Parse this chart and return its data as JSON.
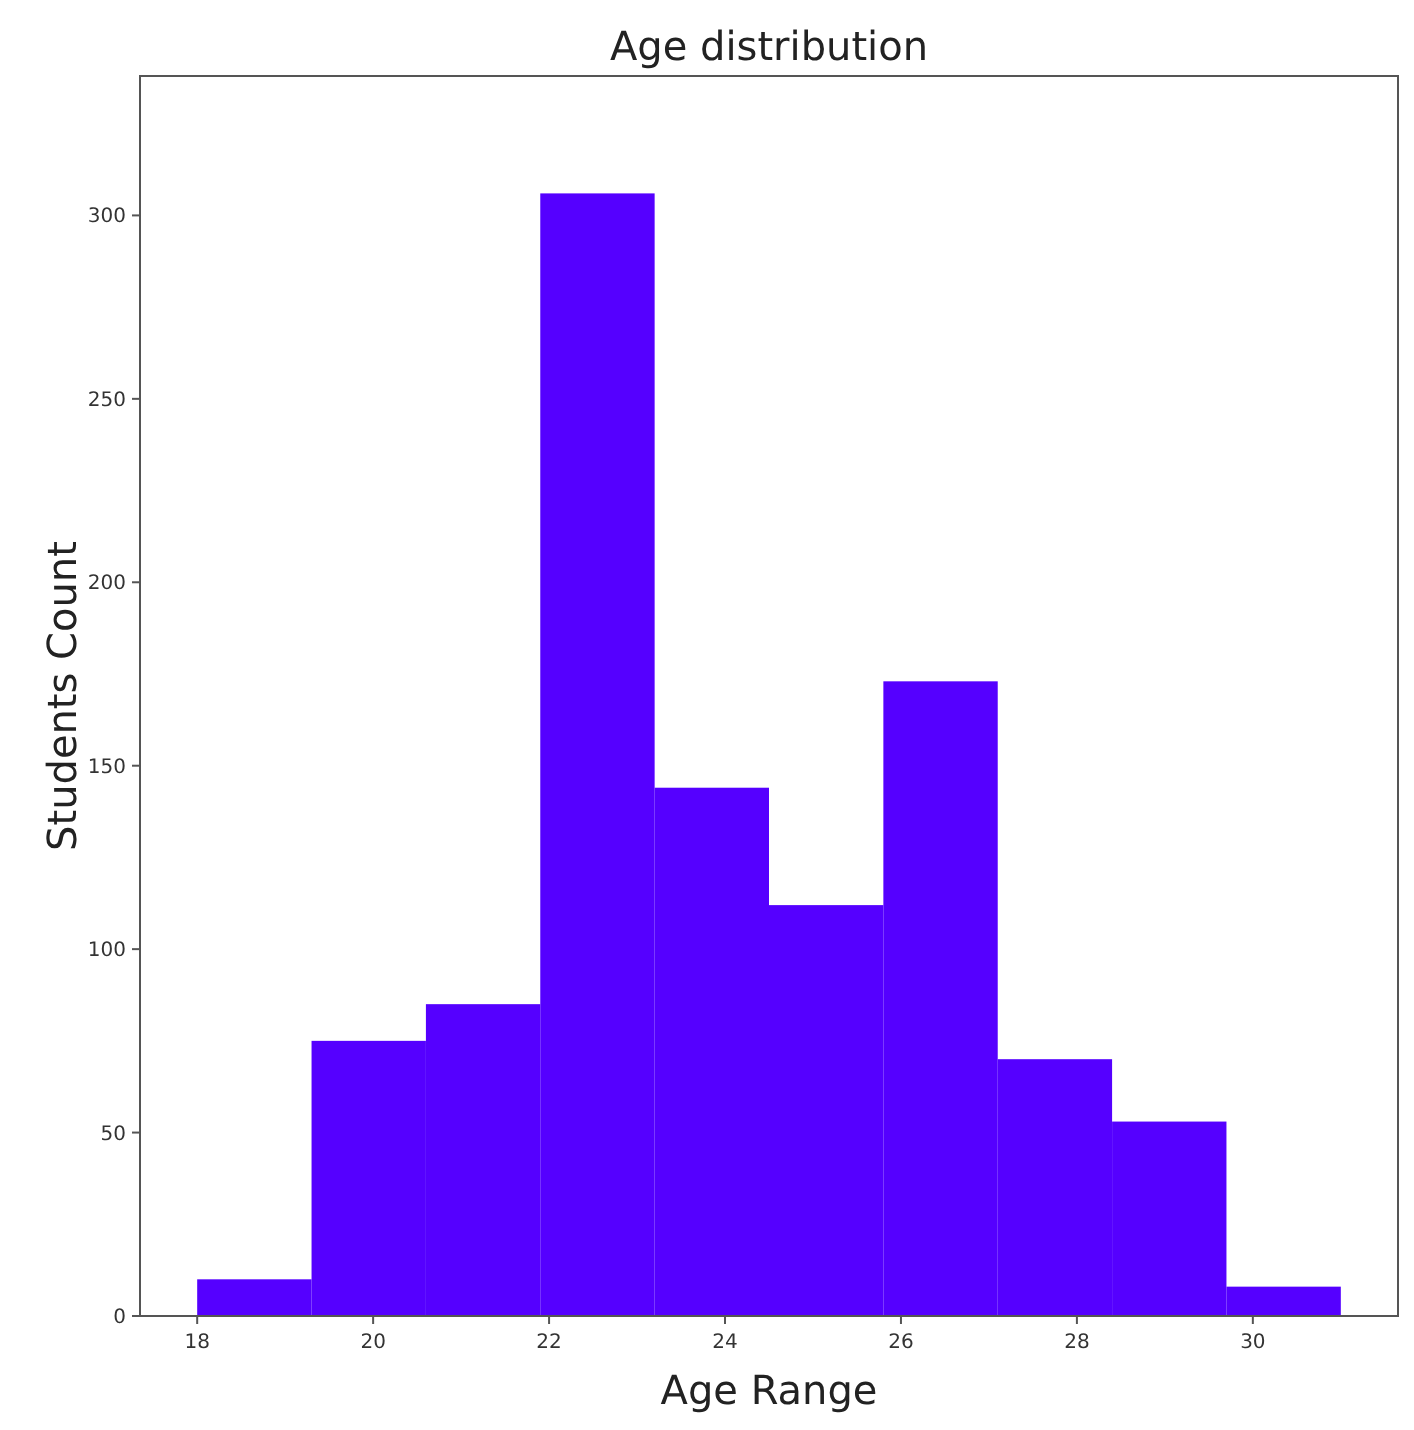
{
  "chart_data": {
    "type": "histogram",
    "title": "Age distribution",
    "xlabel": "Age Range",
    "ylabel": "Students Count",
    "bins": [
      18,
      19.3,
      20.6,
      21.9,
      23.2,
      24.5,
      25.8,
      27.1,
      28.4,
      29.7,
      31
    ],
    "values": [
      10,
      75,
      85,
      306,
      144,
      112,
      173,
      70,
      53,
      8
    ],
    "color": "#5500ff",
    "xlim": [
      17.35,
      31.65
    ],
    "xticks": [
      18,
      20,
      22,
      24,
      26,
      28,
      30
    ],
    "ylim": [
      0,
      338
    ],
    "yticks": [
      0,
      50,
      100,
      150,
      200,
      250,
      300
    ],
    "grid": false
  }
}
